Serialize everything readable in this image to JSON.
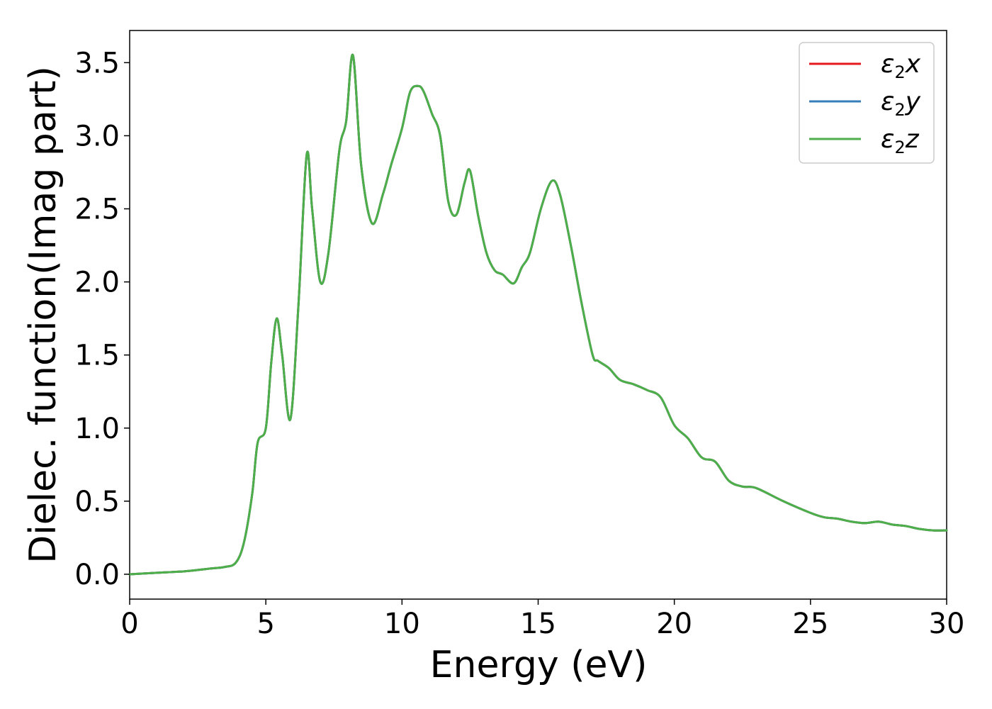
{
  "chart_data": {
    "type": "line",
    "xlabel": "Energy (eV)",
    "ylabel": "Dielec. function(Imag part)",
    "xlim": [
      0,
      30
    ],
    "ylim": [
      -0.17,
      3.72
    ],
    "xticks": [
      0,
      5,
      10,
      15,
      20,
      25,
      30
    ],
    "xtick_labels": [
      "0",
      "5",
      "10",
      "15",
      "20",
      "25",
      "30"
    ],
    "yticks": [
      0.0,
      0.5,
      1.0,
      1.5,
      2.0,
      2.5,
      3.0,
      3.5
    ],
    "ytick_labels": [
      "0.0",
      "0.5",
      "1.0",
      "1.5",
      "2.0",
      "2.5",
      "3.0",
      "3.5"
    ],
    "grid": false,
    "legend_position": "top-right",
    "series": [
      {
        "name": "ε2x",
        "label_base": "ε",
        "label_sub": "2",
        "label_var": "x",
        "color": "#e41a1c"
      },
      {
        "name": "ε2y",
        "label_base": "ε",
        "label_sub": "2",
        "label_var": "y",
        "color": "#377eb8"
      },
      {
        "name": "ε2z",
        "label_base": "ε",
        "label_sub": "2",
        "label_var": "z",
        "color": "#4daf4a"
      }
    ],
    "x": [
      0,
      1,
      2,
      3,
      3.5,
      3.9,
      4.2,
      4.5,
      4.7,
      5.0,
      5.2,
      5.4,
      5.6,
      5.9,
      6.2,
      6.5,
      6.7,
      7.0,
      7.3,
      7.7,
      7.95,
      8.2,
      8.5,
      8.9,
      9.3,
      9.6,
      10.0,
      10.3,
      10.6,
      10.8,
      11.1,
      11.4,
      11.7,
      12.0,
      12.3,
      12.5,
      12.8,
      13.1,
      13.4,
      13.7,
      14.1,
      14.4,
      14.7,
      15.1,
      15.5,
      15.8,
      16.2,
      16.6,
      17.0,
      17.2,
      17.6,
      18.0,
      18.5,
      19.0,
      19.5,
      20.0,
      20.5,
      21.0,
      21.5,
      22.0,
      22.5,
      23.0,
      24.0,
      25.0,
      25.5,
      26.0,
      26.5,
      27.0,
      27.5,
      28.0,
      28.5,
      29.0,
      29.5,
      30.0
    ],
    "values": [
      0.0,
      0.01,
      0.02,
      0.04,
      0.05,
      0.08,
      0.22,
      0.55,
      0.9,
      1.0,
      1.45,
      1.75,
      1.5,
      1.06,
      1.85,
      2.87,
      2.5,
      2.0,
      2.2,
      2.9,
      3.1,
      3.55,
      2.8,
      2.4,
      2.6,
      2.8,
      3.05,
      3.3,
      3.34,
      3.3,
      3.15,
      3.0,
      2.55,
      2.46,
      2.68,
      2.76,
      2.45,
      2.2,
      2.08,
      2.05,
      1.99,
      2.1,
      2.2,
      2.5,
      2.69,
      2.6,
      2.25,
      1.85,
      1.5,
      1.46,
      1.41,
      1.33,
      1.3,
      1.26,
      1.21,
      1.02,
      0.93,
      0.8,
      0.77,
      0.64,
      0.6,
      0.59,
      0.5,
      0.42,
      0.39,
      0.38,
      0.36,
      0.35,
      0.36,
      0.34,
      0.33,
      0.31,
      0.3,
      0.3
    ]
  }
}
